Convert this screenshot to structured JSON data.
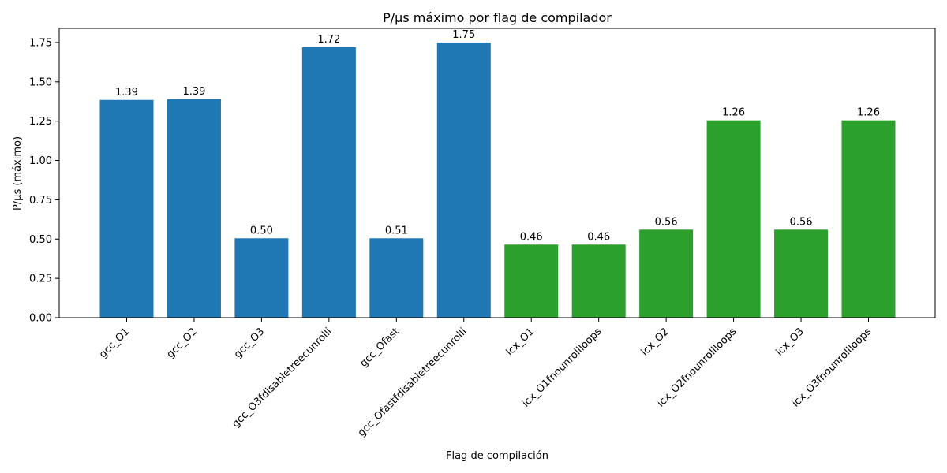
{
  "chart_data": {
    "type": "bar",
    "title": "P/µs máximo por flag de compilador",
    "xlabel": "Flag de compilación",
    "ylabel": "P/µs (máximo)",
    "ylim": [
      0,
      1.84
    ],
    "yticks": [
      "0.00",
      "0.25",
      "0.50",
      "0.75",
      "1.00",
      "1.25",
      "1.50",
      "1.75"
    ],
    "grid": false,
    "categories": [
      "gcc_O1",
      "gcc_O2",
      "gcc_O3",
      "gcc_O3fdisabletreecunrolli",
      "gcc_Ofast",
      "gcc_Ofastfdisabletreecunrolli",
      "icx_O1",
      "icx_O1fnounrollloops",
      "icx_O2",
      "icx_O2fnounrollloops",
      "icx_O3",
      "icx_O3fnounrollloops"
    ],
    "values": [
      1.385,
      1.39,
      0.505,
      1.72,
      0.505,
      1.75,
      0.465,
      0.465,
      0.56,
      1.255,
      0.56,
      1.255
    ],
    "value_labels": [
      "1.39",
      "1.39",
      "0.50",
      "1.72",
      "0.51",
      "1.75",
      "0.46",
      "0.46",
      "0.56",
      "1.26",
      "0.56",
      "1.26"
    ],
    "colors": [
      "#1f77b4",
      "#1f77b4",
      "#1f77b4",
      "#1f77b4",
      "#1f77b4",
      "#1f77b4",
      "#2ca02c",
      "#2ca02c",
      "#2ca02c",
      "#2ca02c",
      "#2ca02c",
      "#2ca02c"
    ]
  }
}
